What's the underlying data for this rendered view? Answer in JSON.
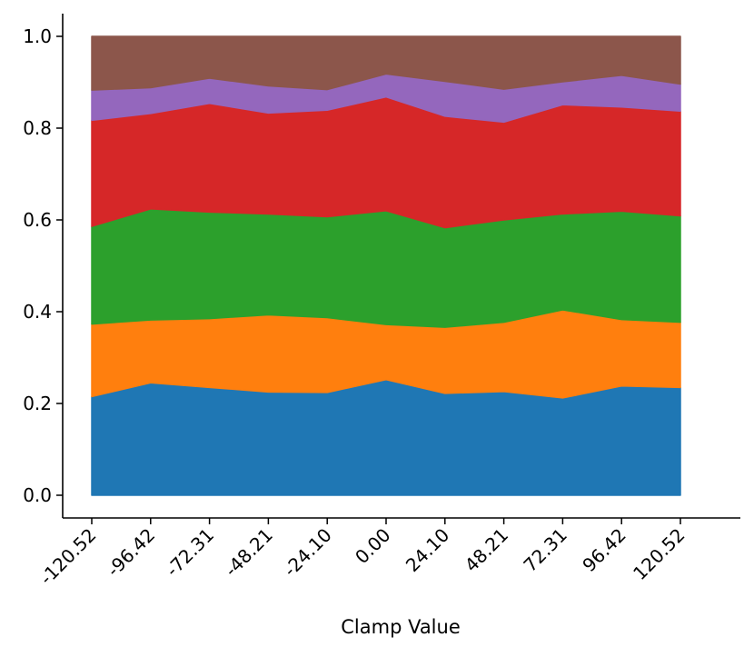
{
  "chart_data": {
    "type": "area",
    "stacked": true,
    "title": "",
    "xlabel": "Clamp Value",
    "ylabel": "",
    "x": [
      "-120.52",
      "-96.42",
      "-72.31",
      "-48.21",
      "-24.10",
      "0.00",
      "24.10",
      "48.21",
      "72.31",
      "96.42",
      "120.52"
    ],
    "x_values": [
      -120.52,
      -96.42,
      -72.31,
      -48.21,
      -24.1,
      0.0,
      24.1,
      48.21,
      72.31,
      96.42,
      120.52
    ],
    "ylim": [
      0.0,
      1.0
    ],
    "yticks": [
      "0.0",
      "0.2",
      "0.4",
      "0.6",
      "0.8",
      "1.0"
    ],
    "ytick_values": [
      0.0,
      0.2,
      0.4,
      0.6,
      0.8,
      1.0
    ],
    "grid": false,
    "legend": "none",
    "series": [
      {
        "color": "#1f77b4",
        "values": [
          0.215,
          0.245,
          0.235,
          0.225,
          0.224,
          0.252,
          0.222,
          0.226,
          0.212,
          0.238,
          0.235
        ]
      },
      {
        "color": "#ff7f0e",
        "values": [
          0.158,
          0.137,
          0.15,
          0.168,
          0.163,
          0.12,
          0.144,
          0.151,
          0.192,
          0.145,
          0.142
        ]
      },
      {
        "color": "#2ca02c",
        "values": [
          0.213,
          0.242,
          0.232,
          0.22,
          0.22,
          0.248,
          0.217,
          0.223,
          0.209,
          0.236,
          0.232
        ]
      },
      {
        "color": "#d62728",
        "values": [
          0.231,
          0.208,
          0.237,
          0.22,
          0.232,
          0.248,
          0.243,
          0.213,
          0.238,
          0.227,
          0.228
        ]
      },
      {
        "color": "#9467bd",
        "values": [
          0.066,
          0.056,
          0.055,
          0.059,
          0.045,
          0.05,
          0.076,
          0.072,
          0.05,
          0.069,
          0.059
        ]
      },
      {
        "color": "#8c564b",
        "values": [
          0.117,
          0.112,
          0.091,
          0.108,
          0.116,
          0.082,
          0.098,
          0.115,
          0.099,
          0.085,
          0.104
        ]
      }
    ]
  }
}
